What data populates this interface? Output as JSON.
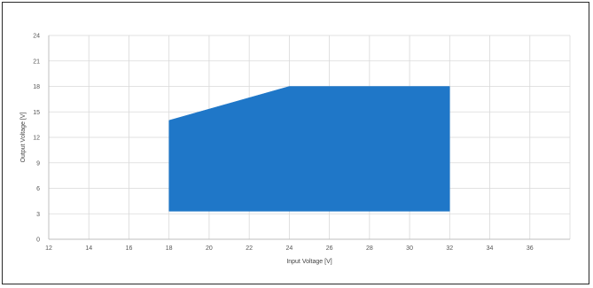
{
  "chart_data": {
    "type": "area",
    "xlabel": "Input Voltage [V]",
    "ylabel": "Output Voltage [V]",
    "xlim": [
      12,
      38
    ],
    "ylim": [
      0,
      24
    ],
    "x_ticks": [
      12,
      14,
      16,
      18,
      20,
      22,
      24,
      26,
      28,
      30,
      32,
      34,
      36
    ],
    "y_ticks": [
      0,
      3,
      6,
      9,
      12,
      15,
      18,
      21,
      24
    ],
    "x_tick_labels": [
      "12",
      "14",
      "16",
      "18",
      "20",
      "22",
      "24",
      "26",
      "28",
      "30",
      "32",
      "34",
      "36"
    ],
    "y_tick_labels": [
      "0",
      "3",
      "6",
      "9",
      "12",
      "15",
      "18",
      "21",
      "24"
    ],
    "grid": true,
    "legend": "none",
    "series": [
      {
        "color": "#1f77c8",
        "points": [
          {
            "x": 18,
            "y": 3.3
          },
          {
            "x": 18,
            "y": 14
          },
          {
            "x": 24,
            "y": 18
          },
          {
            "x": 32,
            "y": 18
          },
          {
            "x": 32,
            "y": 3.3
          }
        ]
      }
    ]
  }
}
